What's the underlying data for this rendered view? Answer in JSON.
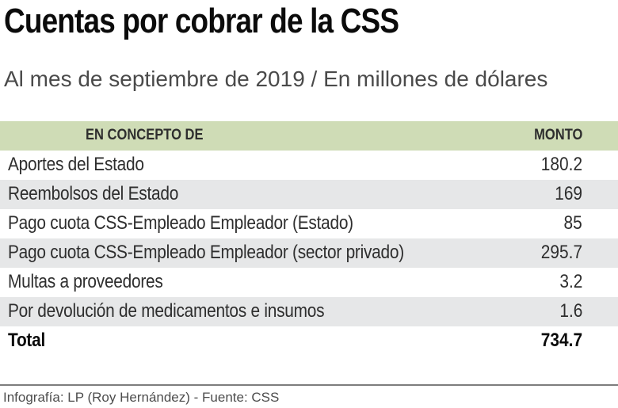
{
  "header": {
    "title": "Cuentas por cobrar de la CSS",
    "subtitle": "Al mes de septiembre de 2019 / En millones de dólares"
  },
  "table": {
    "columns": {
      "concept": "EN CONCEPTO DE",
      "amount": "MONTO"
    },
    "rows": [
      {
        "concept": "Aportes del Estado",
        "amount": "180.2"
      },
      {
        "concept": "Reembolsos del Estado",
        "amount": "169"
      },
      {
        "concept": "Pago cuota CSS-Empleado Empleador (Estado)",
        "amount": "85"
      },
      {
        "concept": "Pago cuota CSS-Empleado Empleador (sector privado)",
        "amount": "295.7"
      },
      {
        "concept": "Multas a proveedores",
        "amount": "3.2"
      },
      {
        "concept": "Por devolución de medicamentos e insumos",
        "amount": "1.6"
      }
    ],
    "total": {
      "concept": "Total",
      "amount": "734.7"
    }
  },
  "footer": {
    "credit": "Infografía: LP (Roy Hernández) - Fuente: CSS"
  },
  "colors": {
    "header_bar": "#cfdcb6",
    "row_alt": "#e6e7e8",
    "title_text": "#0b0b0b",
    "body_text": "#2e2e2e",
    "muted_text": "#4a4a4a"
  },
  "chart_data": {
    "type": "table",
    "title": "Cuentas por cobrar de la CSS",
    "subtitle": "Al mes de septiembre de 2019 / En millones de dólares",
    "columns": [
      "EN CONCEPTO DE",
      "MONTO"
    ],
    "rows": [
      [
        "Aportes del Estado",
        180.2
      ],
      [
        "Reembolsos del Estado",
        169
      ],
      [
        "Pago cuota CSS-Empleado Empleador (Estado)",
        85
      ],
      [
        "Pago cuota CSS-Empleado Empleador (sector privado)",
        295.7
      ],
      [
        "Multas a proveedores",
        3.2
      ],
      [
        "Por devolución de medicamentos e insumos",
        1.6
      ]
    ],
    "total": [
      "Total",
      734.7
    ],
    "units": "millones de dólares",
    "source": "Infografía: LP (Roy Hernández) - Fuente: CSS"
  }
}
